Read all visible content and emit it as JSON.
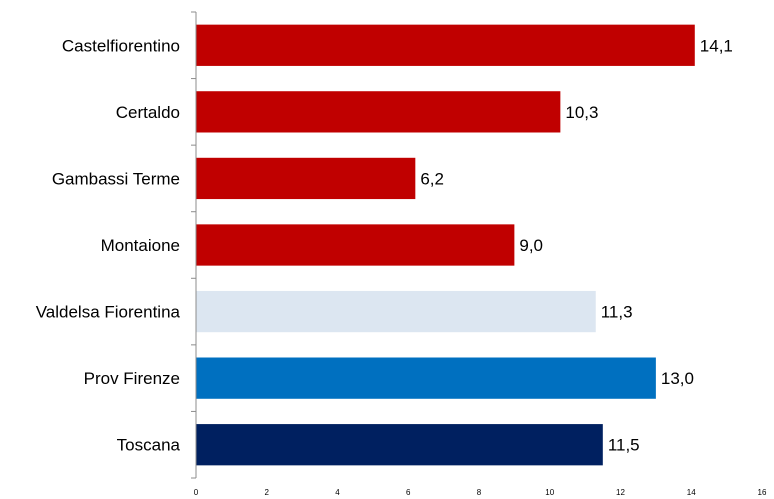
{
  "chart_data": {
    "type": "bar",
    "orientation": "horizontal",
    "title": "",
    "xlabel": "",
    "ylabel": "",
    "xlim": [
      0,
      16
    ],
    "x_ticks": [
      "0",
      "2",
      "4",
      "6",
      "8",
      "10",
      "12",
      "14",
      "16"
    ],
    "categories": [
      "Castelfiorentino",
      "Certaldo",
      "Gambassi Terme",
      "Montaione",
      "Valdelsa Fiorentina",
      "Prov Firenze",
      "Toscana"
    ],
    "values": [
      14.1,
      10.3,
      6.2,
      9.0,
      11.3,
      13.0,
      11.5
    ],
    "value_labels": [
      "14,1",
      "10,3",
      "6,2",
      "9,0",
      "11,3",
      "13,0",
      "11,5"
    ],
    "colors": [
      "#c00000",
      "#c00000",
      "#c00000",
      "#c00000",
      "#dce6f1",
      "#0070c0",
      "#002060"
    ],
    "grid": false,
    "legend": "none"
  }
}
